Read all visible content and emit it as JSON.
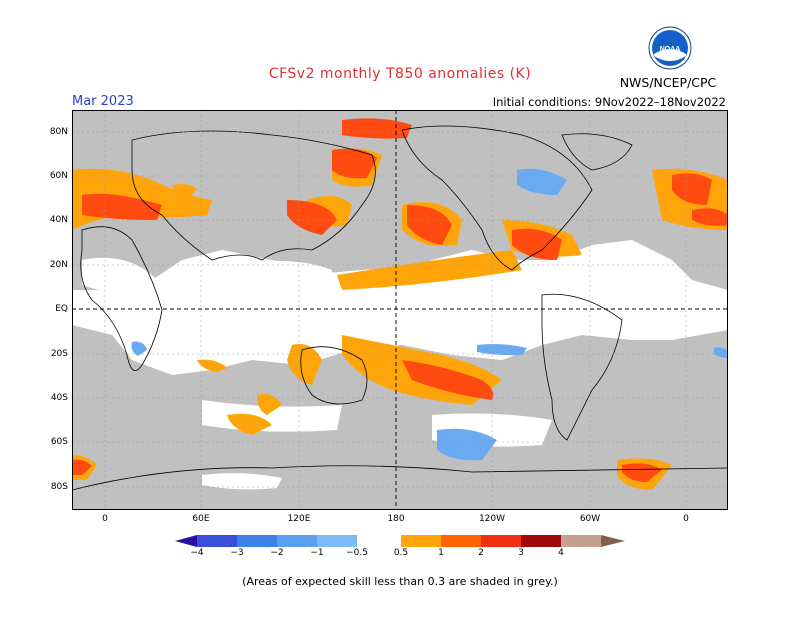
{
  "title": "CFSv2 monthly T850 anomalies (K)",
  "valid_month": "Mar 2023",
  "initial_conditions": "Initial conditions: 9Nov2022–18Nov2022",
  "agency": "NWS/NCEP/CPC",
  "logo_text": "NOAA",
  "footnote": "(Areas of expected skill less than 0.3 are shaded in grey.)",
  "y_ticks": [
    "80N",
    "60N",
    "40N",
    "20N",
    "EQ",
    "20S",
    "40S",
    "60S",
    "80S"
  ],
  "x_ticks": [
    "0",
    "60E",
    "120E",
    "180",
    "120W",
    "60W",
    "0"
  ],
  "colorbar": {
    "labels": [
      "−4",
      "−3",
      "−2",
      "−1",
      "−0.5",
      "0.5",
      "1",
      "2",
      "3",
      "4"
    ],
    "colors": [
      "#2a0fa0",
      "#3a4fd8",
      "#3b82e8",
      "#5aa0f0",
      "#7bbaf6",
      "#ffffff",
      "#ffa50a",
      "#ff6400",
      "#f03010",
      "#a00a0a",
      "#c8a090",
      "#806050"
    ]
  },
  "colors": {
    "grey_skill": "#c0c0c0",
    "orange": "#ffa50a",
    "red_orange": "#ff4a10",
    "light_blue": "#6aaaf0",
    "title_red": "#e03030",
    "month_blue": "#2a3fd0"
  },
  "icons": {
    "logo": "noaa-logo-icon"
  }
}
